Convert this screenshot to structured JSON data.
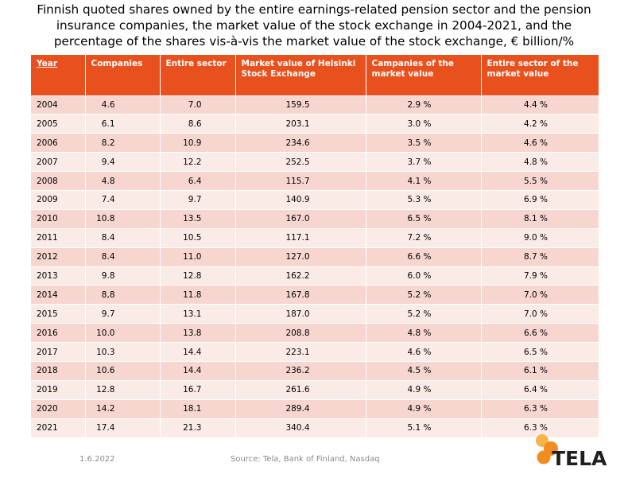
{
  "title": {
    "line1": "Finnish quoted shares owned by the entire earnings-related pension sector and the pension",
    "line2": "insurance companies, the market value of the stock exchange in 2004-2021, and the",
    "line3": "percentage of the shares vis-à-vis the market value of the stock exchange, € billion/%"
  },
  "table": {
    "headers": [
      "Year",
      "Companies",
      "Entire sector",
      "Market value of Helsinki Stock Exchange",
      "Campanies of the market value",
      "Entire sector of the market value"
    ],
    "rows": [
      [
        "2004",
        "4.6",
        "7.0",
        "159.5",
        "2.9 %",
        "4.4 %"
      ],
      [
        "2005",
        "6.1",
        "8.6",
        "203.1",
        "3.0 %",
        "4.2 %"
      ],
      [
        "2006",
        "8.2",
        "10.9",
        "234.6",
        "3.5 %",
        "4.6 %"
      ],
      [
        "2007",
        "9.4",
        "12.2",
        "252.5",
        "3.7 %",
        "4.8 %"
      ],
      [
        "2008",
        "4.8",
        "6.4",
        "115.7",
        "4.1 %",
        "5.5 %"
      ],
      [
        "2009",
        "7.4",
        "9.7",
        "140.9",
        "5.3 %",
        "6.9 %"
      ],
      [
        "2010",
        "10.8",
        "13.5",
        "167.0",
        "6.5 %",
        "8.1 %"
      ],
      [
        "2011",
        "8.4",
        "10.5",
        "117.1",
        "7.2 %",
        "9.0 %"
      ],
      [
        "2012",
        "8.4",
        "11.0",
        "127.0",
        "6.6 %",
        "8.7 %"
      ],
      [
        "2013",
        "9.8",
        "12.8",
        "162.2",
        "6.0 %",
        "7.9 %"
      ],
      [
        "2014",
        "8,8",
        "11.8",
        "167.8",
        "5.2 %",
        "7.0 %"
      ],
      [
        "2015",
        "9.7",
        "13.1",
        "187.0",
        "5.2 %",
        "7.0 %"
      ],
      [
        "2016",
        "10.0",
        "13.8",
        "208.8",
        "4.8 %",
        "6.6 %"
      ],
      [
        "2017",
        "10.3",
        "14.4",
        "223.1",
        "4.6 %",
        "6.5 %"
      ],
      [
        "2018",
        "10.6",
        "14.4",
        "236.2",
        "4.5 %",
        "6.1 %"
      ],
      [
        "2019",
        "12.8",
        "16.7",
        "261.6",
        "4.9 %",
        "6.4 %"
      ],
      [
        "2020",
        "14.2",
        "18.1",
        "289.4",
        "4.9 %",
        "6.3 %"
      ],
      [
        "2021",
        "17.4",
        "21.3",
        "340.4",
        "5.1 %",
        "6.3 %"
      ]
    ]
  },
  "footer": {
    "date": "1.6.2022",
    "source": "Source: Tela, Bank of Finland, Nasdaq"
  },
  "logo": {
    "text": "TELA",
    "colors": {
      "orange": "#f28c1e",
      "light_orange": "#f7b24a",
      "text": "#1f1f1f"
    }
  },
  "colors": {
    "header_bg": "#e8501d",
    "row_odd": "#f6d6cf",
    "row_even": "#fbebe7"
  }
}
